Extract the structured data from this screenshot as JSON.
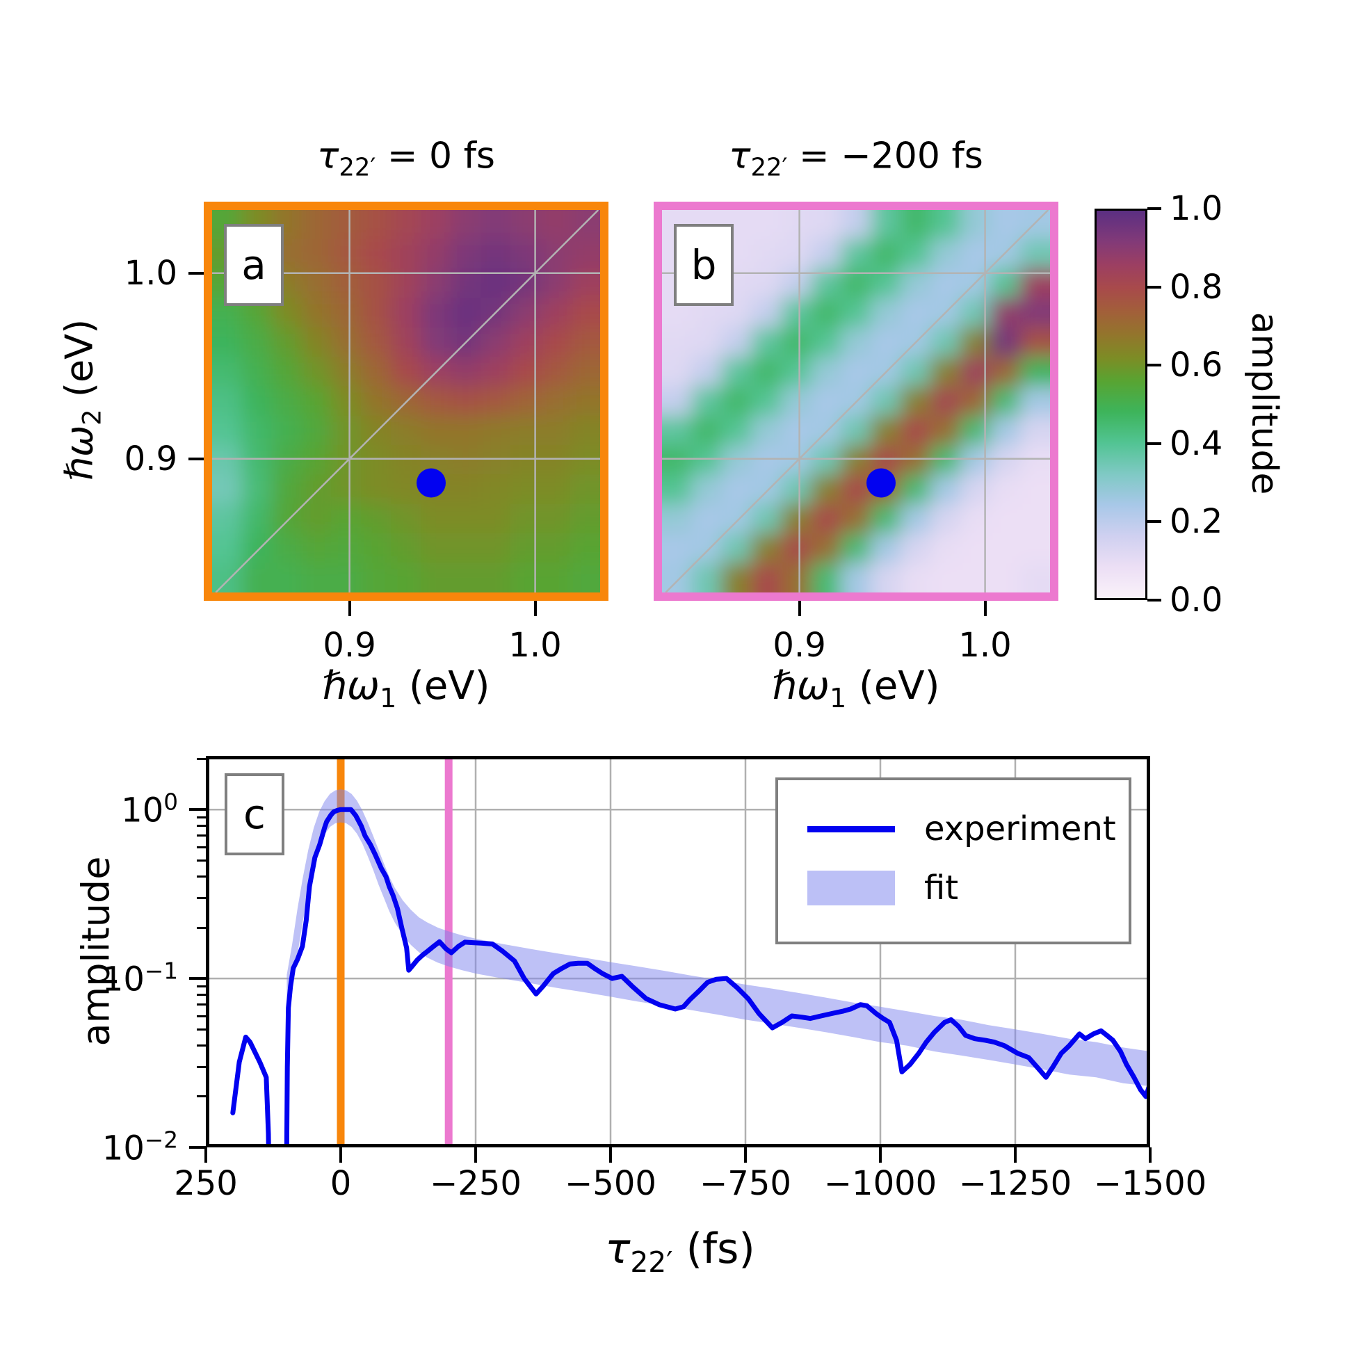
{
  "titles": {
    "a": {
      "sym": "τ",
      "sub": "22′",
      "eq": " = 0 fs"
    },
    "b": {
      "sym": "τ",
      "sub": "22′",
      "eq": " = −200 fs"
    }
  },
  "panel_letters": {
    "a": "a",
    "b": "b",
    "c": "c"
  },
  "axes": {
    "omega1": {
      "sym": "ℏω",
      "sub": "1",
      "unit": " (eV)"
    },
    "omega2": {
      "sym": "ℏω",
      "sub": "2",
      "unit": " (eV)"
    },
    "ab_xtick_labels": [
      "0.9",
      "1.0"
    ],
    "ab_ytick_labels": [
      "1.0",
      "0.9"
    ],
    "c_xlabel": {
      "sym": "τ",
      "sub": "22′",
      "unit": " (fs)"
    },
    "c_ylabel": "amplitude",
    "c_xtick_labels": [
      "250",
      "0",
      "−250",
      "−500",
      "−750",
      "−1000",
      "−1250",
      "−1500"
    ],
    "c_ytick_labels": [
      {
        "m": "10",
        "e": "0"
      },
      {
        "m": "10",
        "e": "−1"
      },
      {
        "m": "10",
        "e": "−2"
      }
    ]
  },
  "colorbar": {
    "label": "amplitude",
    "tick_labels": [
      "1.0",
      "0.8",
      "0.6",
      "0.4",
      "0.2",
      "0.0"
    ],
    "tick_values": [
      1.0,
      0.8,
      0.6,
      0.4,
      0.2,
      0.0
    ],
    "stops": [
      [
        0.0,
        "#faf2fa"
      ],
      [
        0.08,
        "#ecdff5"
      ],
      [
        0.16,
        "#cfd0f0"
      ],
      [
        0.24,
        "#a8c8e8"
      ],
      [
        0.32,
        "#7fc9c4"
      ],
      [
        0.4,
        "#52c493"
      ],
      [
        0.48,
        "#3db45b"
      ],
      [
        0.56,
        "#58a432"
      ],
      [
        0.62,
        "#7d8c25"
      ],
      [
        0.68,
        "#93752c"
      ],
      [
        0.74,
        "#a25f3a"
      ],
      [
        0.8,
        "#a84a4b"
      ],
      [
        0.86,
        "#9c3f62"
      ],
      [
        0.92,
        "#823a78"
      ],
      [
        1.0,
        "#5b2f82"
      ]
    ]
  },
  "legend": {
    "experiment": "experiment",
    "fit": "fit"
  },
  "colors": {
    "orange": "#f8860b",
    "pink": "#ec79cf",
    "blue": "#0202f0",
    "band": "rgba(125,132,238,0.5)",
    "band_solid": "#bcc0f6",
    "grid_gray": "#b0b0b0",
    "heat_grid_gray": "#b3b3b3"
  },
  "chart_data": [
    {
      "type": "heatmap",
      "panel": "a",
      "title": "τ22′ = 0 fs",
      "xlabel": "ℏω1 (eV)",
      "ylabel": "ℏω2 (eV)",
      "xlim": [
        0.826,
        1.035
      ],
      "ylim": [
        0.828,
        1.034
      ],
      "xticks": [
        0.9,
        1.0
      ],
      "yticks": [
        1.0,
        0.9
      ],
      "diagonal": true,
      "marker": {
        "x": 0.944,
        "y": 0.887
      },
      "frame_color": "#f8860b",
      "grid": [
        [
          0.55,
          0.62,
          0.68,
          0.72,
          0.75,
          0.78,
          0.82,
          0.86,
          0.9,
          0.92,
          0.9,
          0.88,
          0.9
        ],
        [
          0.58,
          0.65,
          0.7,
          0.72,
          0.76,
          0.8,
          0.84,
          0.88,
          0.93,
          0.95,
          0.93,
          0.9,
          0.88
        ],
        [
          0.55,
          0.6,
          0.66,
          0.7,
          0.74,
          0.78,
          0.84,
          0.9,
          0.95,
          0.97,
          0.95,
          0.9,
          0.85
        ],
        [
          0.5,
          0.55,
          0.62,
          0.68,
          0.72,
          0.78,
          0.86,
          0.93,
          0.97,
          0.95,
          0.9,
          0.85,
          0.8
        ],
        [
          0.48,
          0.52,
          0.58,
          0.64,
          0.7,
          0.76,
          0.84,
          0.92,
          0.95,
          0.9,
          0.85,
          0.8,
          0.76
        ],
        [
          0.45,
          0.5,
          0.55,
          0.6,
          0.66,
          0.72,
          0.8,
          0.86,
          0.88,
          0.85,
          0.8,
          0.76,
          0.72
        ],
        [
          0.42,
          0.48,
          0.52,
          0.56,
          0.62,
          0.68,
          0.72,
          0.76,
          0.78,
          0.76,
          0.73,
          0.7,
          0.68
        ],
        [
          0.4,
          0.46,
          0.5,
          0.54,
          0.6,
          0.64,
          0.66,
          0.68,
          0.68,
          0.67,
          0.66,
          0.66,
          0.64
        ],
        [
          0.36,
          0.45,
          0.52,
          0.56,
          0.6,
          0.62,
          0.64,
          0.65,
          0.66,
          0.65,
          0.64,
          0.64,
          0.62
        ],
        [
          0.34,
          0.44,
          0.54,
          0.58,
          0.6,
          0.62,
          0.63,
          0.64,
          0.64,
          0.63,
          0.62,
          0.62,
          0.6
        ],
        [
          0.38,
          0.46,
          0.55,
          0.58,
          0.56,
          0.58,
          0.6,
          0.62,
          0.62,
          0.62,
          0.6,
          0.6,
          0.58
        ],
        [
          0.4,
          0.48,
          0.52,
          0.55,
          0.54,
          0.56,
          0.58,
          0.6,
          0.6,
          0.6,
          0.58,
          0.58,
          0.56
        ],
        [
          0.42,
          0.5,
          0.5,
          0.52,
          0.52,
          0.55,
          0.56,
          0.58,
          0.58,
          0.58,
          0.56,
          0.56,
          0.54
        ]
      ]
    },
    {
      "type": "heatmap",
      "panel": "b",
      "title": "τ22′ = −200 fs",
      "xlabel": "ℏω1 (eV)",
      "ylabel": "ℏω2 (eV)",
      "xlim": [
        0.826,
        1.035
      ],
      "ylim": [
        0.828,
        1.034
      ],
      "xticks": [
        0.9,
        1.0
      ],
      "yticks": [
        1.0,
        0.9
      ],
      "diagonal": true,
      "marker": {
        "x": 0.944,
        "y": 0.887
      },
      "frame_color": "#ec79cf",
      "grid": [
        [
          0.1,
          0.1,
          0.1,
          0.1,
          0.11,
          0.12,
          0.18,
          0.38,
          0.46,
          0.4,
          0.28,
          0.24,
          0.25
        ],
        [
          0.1,
          0.1,
          0.1,
          0.11,
          0.12,
          0.18,
          0.38,
          0.46,
          0.4,
          0.28,
          0.24,
          0.25,
          0.35
        ],
        [
          0.1,
          0.1,
          0.11,
          0.12,
          0.18,
          0.38,
          0.46,
          0.4,
          0.28,
          0.24,
          0.25,
          0.4,
          0.85
        ],
        [
          0.1,
          0.11,
          0.12,
          0.18,
          0.38,
          0.46,
          0.4,
          0.28,
          0.24,
          0.25,
          0.35,
          0.88,
          0.92
        ],
        [
          0.11,
          0.12,
          0.18,
          0.38,
          0.46,
          0.4,
          0.28,
          0.24,
          0.25,
          0.35,
          0.65,
          0.95,
          0.78
        ],
        [
          0.12,
          0.18,
          0.38,
          0.46,
          0.4,
          0.28,
          0.24,
          0.25,
          0.35,
          0.65,
          0.85,
          0.72,
          0.48
        ],
        [
          0.18,
          0.38,
          0.46,
          0.4,
          0.28,
          0.24,
          0.25,
          0.35,
          0.65,
          0.82,
          0.72,
          0.45,
          0.25
        ],
        [
          0.38,
          0.46,
          0.4,
          0.28,
          0.24,
          0.25,
          0.35,
          0.65,
          0.8,
          0.7,
          0.45,
          0.25,
          0.14
        ],
        [
          0.46,
          0.4,
          0.28,
          0.24,
          0.25,
          0.35,
          0.65,
          0.8,
          0.7,
          0.45,
          0.25,
          0.14,
          0.09
        ],
        [
          0.4,
          0.28,
          0.24,
          0.25,
          0.35,
          0.65,
          0.8,
          0.7,
          0.45,
          0.25,
          0.14,
          0.09,
          0.08
        ],
        [
          0.28,
          0.24,
          0.25,
          0.35,
          0.65,
          0.8,
          0.7,
          0.45,
          0.25,
          0.14,
          0.09,
          0.08,
          0.08
        ],
        [
          0.24,
          0.25,
          0.35,
          0.65,
          0.8,
          0.7,
          0.45,
          0.25,
          0.14,
          0.09,
          0.08,
          0.08,
          0.08
        ],
        [
          0.25,
          0.35,
          0.65,
          0.8,
          0.7,
          0.45,
          0.25,
          0.14,
          0.09,
          0.08,
          0.08,
          0.08,
          0.1
        ]
      ]
    },
    {
      "type": "line",
      "panel": "c",
      "xlabel": "τ22′ (fs)",
      "ylabel": "amplitude",
      "xlim": [
        250,
        -1500
      ],
      "yscale": "log",
      "ylim": [
        0.01,
        2.08
      ],
      "xticks": [
        250,
        0,
        -250,
        -500,
        -750,
        -1000,
        -1250,
        -1500
      ],
      "yticks": [
        1,
        0.1,
        0.01
      ],
      "grid_x": [
        0,
        -250,
        -500,
        -750,
        -1000,
        -1250
      ],
      "grid_y": [
        1,
        0.1
      ],
      "legend_position": "upper right",
      "vlines": [
        {
          "x": 0,
          "color": "#f8860b"
        },
        {
          "x": -200,
          "color": "#ec79cf"
        }
      ],
      "series": [
        {
          "name": "experiment",
          "type": "line",
          "x": [
            200,
            188,
            176,
            168,
            150,
            138,
            134,
            132,
            101,
            99,
            97,
            93,
            88,
            80,
            71,
            64,
            58,
            48,
            39,
            30,
            26,
            18,
            13,
            6,
            0,
            -10,
            -19,
            -28,
            -38,
            -45,
            -55,
            -64,
            -75,
            -84,
            -90,
            -97,
            -105,
            -113,
            -122,
            -126,
            -134,
            -142,
            -152,
            -161,
            -172,
            -183,
            -195,
            -205,
            -218,
            -230,
            -245,
            -260,
            -281,
            -300,
            -322,
            -340,
            -362,
            -375,
            -394,
            -410,
            -425,
            -440,
            -457,
            -470,
            -485,
            -503,
            -521,
            -540,
            -566,
            -590,
            -620,
            -635,
            -647,
            -665,
            -680,
            -696,
            -715,
            -735,
            -755,
            -775,
            -800,
            -818,
            -836,
            -855,
            -870,
            -890,
            -910,
            -930,
            -945,
            -963,
            -975,
            -992,
            -1005,
            -1017,
            -1030,
            -1040,
            -1055,
            -1071,
            -1085,
            -1100,
            -1119,
            -1131,
            -1145,
            -1158,
            -1175,
            -1195,
            -1211,
            -1230,
            -1255,
            -1275,
            -1290,
            -1307,
            -1320,
            -1335,
            -1350,
            -1369,
            -1380,
            -1395,
            -1409,
            -1420,
            -1431,
            -1445,
            -1456,
            -1470,
            -1482,
            -1492,
            -1500,
            -1505
          ],
          "y": [
            0.016,
            0.032,
            0.045,
            0.042,
            0.032,
            0.026,
            0.012,
            0.004,
            0.004,
            0.03,
            0.067,
            0.09,
            0.115,
            0.13,
            0.155,
            0.22,
            0.35,
            0.52,
            0.62,
            0.78,
            0.85,
            0.93,
            0.97,
            0.99,
            1.0,
            1.0,
            1.0,
            0.92,
            0.8,
            0.7,
            0.62,
            0.54,
            0.45,
            0.4,
            0.35,
            0.31,
            0.26,
            0.2,
            0.152,
            0.112,
            0.12,
            0.129,
            0.138,
            0.145,
            0.155,
            0.165,
            0.15,
            0.142,
            0.155,
            0.164,
            0.163,
            0.162,
            0.16,
            0.145,
            0.127,
            0.1,
            0.081,
            0.09,
            0.107,
            0.115,
            0.122,
            0.123,
            0.123,
            0.115,
            0.107,
            0.1,
            0.103,
            0.09,
            0.076,
            0.07,
            0.066,
            0.068,
            0.075,
            0.085,
            0.095,
            0.099,
            0.1,
            0.088,
            0.076,
            0.062,
            0.051,
            0.055,
            0.06,
            0.059,
            0.058,
            0.06,
            0.062,
            0.064,
            0.066,
            0.07,
            0.069,
            0.062,
            0.058,
            0.055,
            0.043,
            0.028,
            0.031,
            0.036,
            0.042,
            0.048,
            0.055,
            0.057,
            0.052,
            0.046,
            0.044,
            0.043,
            0.042,
            0.04,
            0.036,
            0.034,
            0.03,
            0.026,
            0.03,
            0.036,
            0.04,
            0.047,
            0.044,
            0.047,
            0.049,
            0.046,
            0.043,
            0.037,
            0.031,
            0.026,
            0.022,
            0.02,
            0.024,
            0.029
          ]
        },
        {
          "name": "fit",
          "type": "band",
          "x": [
            100,
            90,
            80,
            70,
            60,
            50,
            40,
            30,
            20,
            10,
            0,
            -10,
            -20,
            -30,
            -40,
            -50,
            -60,
            -70,
            -80,
            -90,
            -100,
            -115,
            -130,
            -145,
            -160,
            -180,
            -200,
            -225,
            -250,
            -300,
            -350,
            -400,
            -450,
            -500,
            -550,
            -600,
            -650,
            -700,
            -750,
            -800,
            -850,
            -900,
            -950,
            -1000,
            -1050,
            -1100,
            -1150,
            -1200,
            -1250,
            -1300,
            -1350,
            -1400,
            -1450,
            -1500
          ],
          "upper": [
            0.105,
            0.16,
            0.26,
            0.4,
            0.58,
            0.78,
            0.97,
            1.12,
            1.24,
            1.3,
            1.32,
            1.3,
            1.24,
            1.13,
            0.99,
            0.84,
            0.7,
            0.58,
            0.48,
            0.4,
            0.345,
            0.29,
            0.255,
            0.23,
            0.215,
            0.2,
            0.19,
            0.18,
            0.172,
            0.16,
            0.15,
            0.141,
            0.133,
            0.125,
            0.118,
            0.111,
            0.104,
            0.098,
            0.092,
            0.087,
            0.082,
            0.077,
            0.072,
            0.068,
            0.064,
            0.06,
            0.057,
            0.053,
            0.05,
            0.047,
            0.044,
            0.042,
            0.039,
            0.037
          ],
          "lower": [
            0.062,
            0.09,
            0.14,
            0.22,
            0.33,
            0.46,
            0.6,
            0.71,
            0.79,
            0.83,
            0.84,
            0.83,
            0.79,
            0.72,
            0.63,
            0.53,
            0.44,
            0.36,
            0.3,
            0.25,
            0.215,
            0.18,
            0.158,
            0.143,
            0.133,
            0.124,
            0.118,
            0.112,
            0.107,
            0.1,
            0.094,
            0.088,
            0.083,
            0.078,
            0.073,
            0.069,
            0.065,
            0.061,
            0.057,
            0.054,
            0.051,
            0.048,
            0.045,
            0.042,
            0.04,
            0.037,
            0.035,
            0.033,
            0.031,
            0.029,
            0.027,
            0.026,
            0.024,
            0.023
          ]
        }
      ]
    }
  ]
}
